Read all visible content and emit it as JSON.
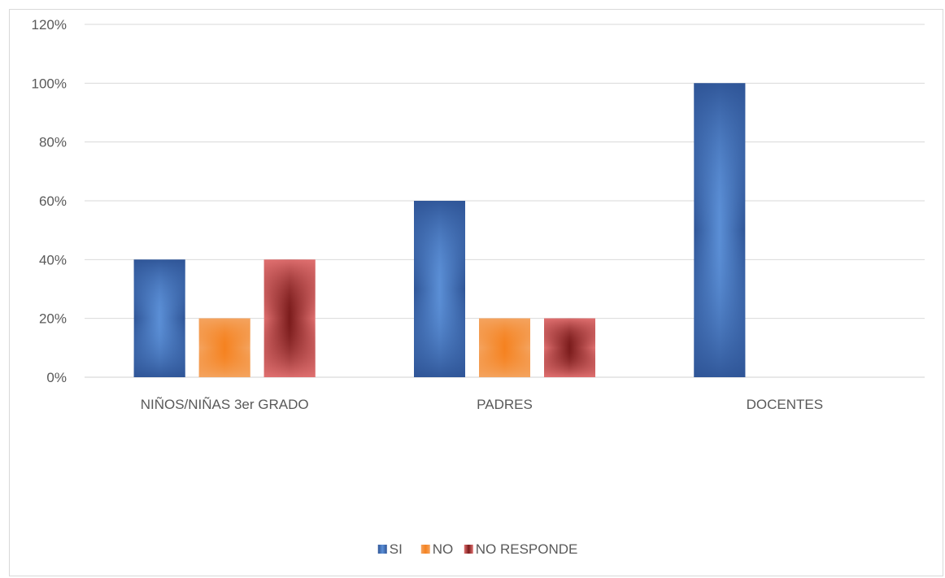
{
  "chart_data": {
    "type": "bar",
    "title": "",
    "xlabel": "",
    "ylabel": "",
    "categories": [
      "NIÑOS/NIÑAS 3er GRADO",
      "PADRES",
      "DOCENTES"
    ],
    "series": [
      {
        "name": "SI",
        "values": [
          40,
          60,
          100
        ],
        "color": "#2f5597",
        "highlight": "#5b8fd6"
      },
      {
        "name": "NO",
        "values": [
          20,
          20,
          null
        ],
        "color": "#f4a460",
        "highlight": "#f58220"
      },
      {
        "name": "NO RESPONDE",
        "values": [
          40,
          20,
          null
        ],
        "color": "#e07070",
        "highlight": "#7b1c1c"
      }
    ],
    "ylim": [
      0,
      120
    ],
    "yticks": [
      "0%",
      "20%",
      "40%",
      "60%",
      "80%",
      "100%",
      "120%"
    ],
    "grid": true,
    "legend_position": "bottom"
  }
}
